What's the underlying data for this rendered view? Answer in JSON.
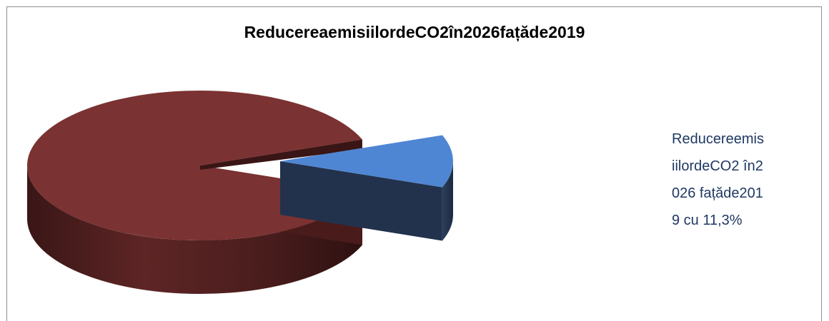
{
  "chart_data": {
    "type": "pie",
    "title": "ReducereaemisiilordeCO2în2026fațăde2019",
    "slices": [
      {
        "value": 88.7,
        "color": "#7b3232"
      },
      {
        "value": 11.3,
        "color": "#4f86d3",
        "exploded": true
      }
    ],
    "annotation": "ReducereemisiilordeCO2 în2026 fațăde2019 cu 11,3%",
    "legend": "none",
    "style": "3d-exploded"
  }
}
